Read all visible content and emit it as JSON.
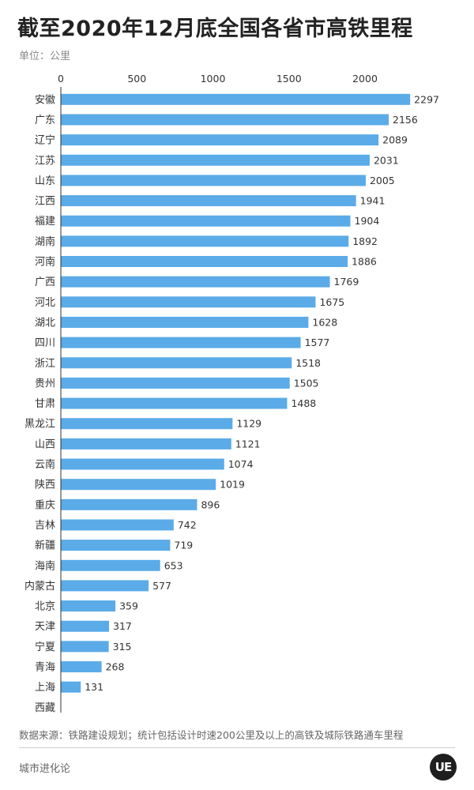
{
  "header": {
    "title": "截至2020年12月底全国各省市高铁里程",
    "unit": "单位：公里"
  },
  "footer": {
    "source": "数据来源：铁路建设规划；统计包括设计时速200公里及以上的高铁及城际铁路通车里程",
    "brand": "城市进化论",
    "logo_text": "UE"
  },
  "colors": {
    "bar": "#5aabe8",
    "axis": "#333333"
  },
  "chart_data": {
    "type": "bar",
    "orientation": "horizontal",
    "title": "截至2020年12月底全国各省市高铁里程",
    "xlabel": "",
    "ylabel": "",
    "xlim": [
      0,
      2400
    ],
    "ticks": [
      0,
      500,
      1000,
      1500,
      2000
    ],
    "tick_labels": [
      "0",
      "500",
      "1000",
      "1500",
      "2000"
    ],
    "grid": false,
    "categories": [
      "安徽",
      "广东",
      "辽宁",
      "江苏",
      "山东",
      "江西",
      "福建",
      "湖南",
      "河南",
      "广西",
      "河北",
      "湖北",
      "四川",
      "浙江",
      "贵州",
      "甘肃",
      "黑龙江",
      "山西",
      "云南",
      "陕西",
      "重庆",
      "吉林",
      "新疆",
      "海南",
      "内蒙古",
      "北京",
      "天津",
      "宁夏",
      "青海",
      "上海",
      "西藏"
    ],
    "values": [
      2297,
      2156,
      2089,
      2031,
      2005,
      1941,
      1904,
      1892,
      1886,
      1769,
      1675,
      1628,
      1577,
      1518,
      1505,
      1488,
      1129,
      1121,
      1074,
      1019,
      896,
      742,
      719,
      653,
      577,
      359,
      317,
      315,
      268,
      131,
      0
    ],
    "value_labels": [
      "2297",
      "2156",
      "2089",
      "2031",
      "2005",
      "1941",
      "1904",
      "1892",
      "1886",
      "1769",
      "1675",
      "1628",
      "1577",
      "1518",
      "1505",
      "1488",
      "1129",
      "1121",
      "1074",
      "1019",
      "896",
      "742",
      "719",
      "653",
      "577",
      "359",
      "317",
      "315",
      "268",
      "131",
      ""
    ]
  }
}
